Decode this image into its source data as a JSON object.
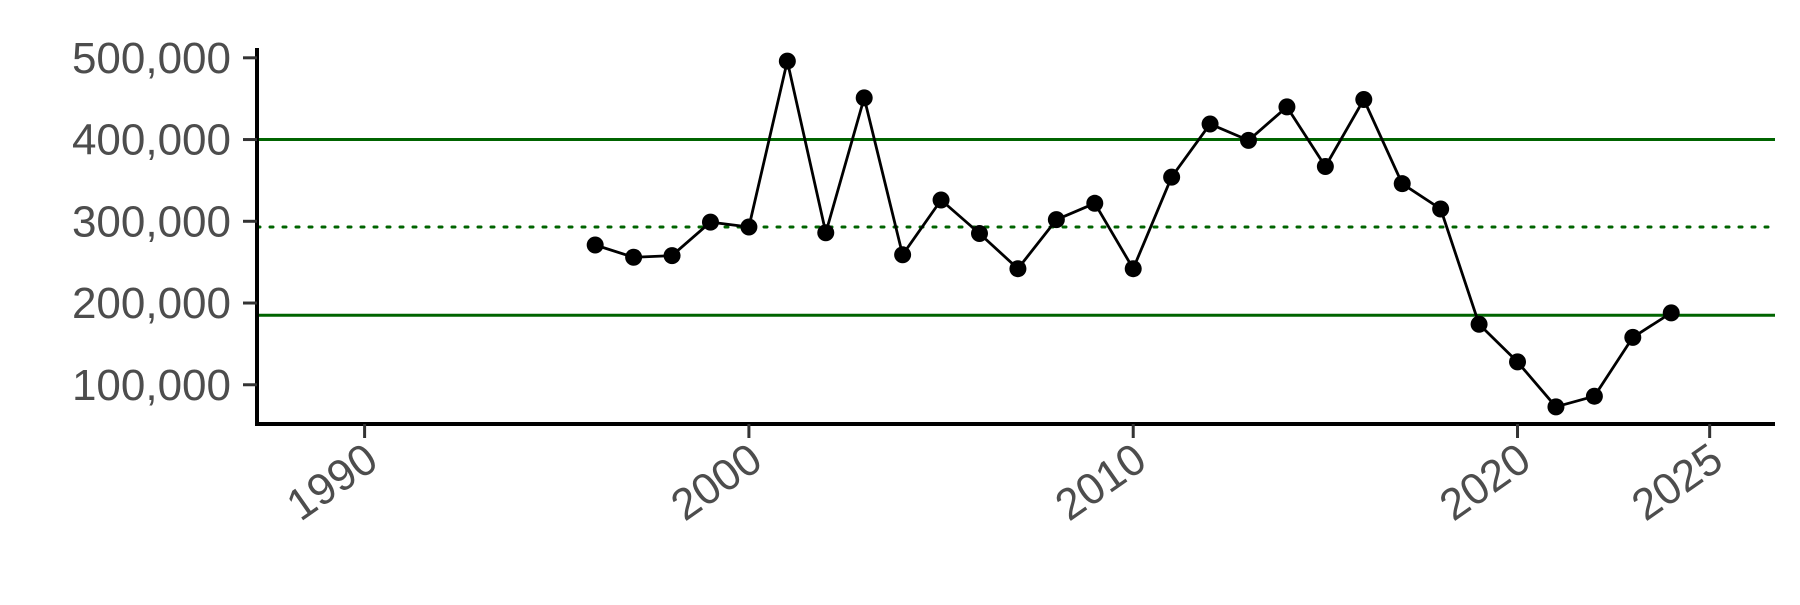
{
  "chart_data": {
    "type": "line",
    "title": "",
    "xlabel": "",
    "ylabel": "",
    "x_ticks": [
      1990,
      2000,
      2010,
      2020,
      2025
    ],
    "x_tick_labels": [
      "1990",
      "2000",
      "2010",
      "2020",
      "2025"
    ],
    "y_ticks": [
      100000,
      200000,
      300000,
      400000,
      500000
    ],
    "y_tick_labels": [
      "100,000",
      "200,000",
      "300,000",
      "400,000",
      "500,000"
    ],
    "xlim": [
      1987.2,
      2026.7
    ],
    "ylim": [
      52000,
      512000
    ],
    "grid": false,
    "series": [
      {
        "x": [
          1996,
          1997,
          1998,
          1999,
          2000,
          2001,
          2002,
          2003,
          2004,
          2005,
          2006,
          2007,
          2008,
          2009,
          2010,
          2011,
          2012,
          2013,
          2014,
          2015,
          2016,
          2017,
          2018,
          2019,
          2020,
          2021,
          2022,
          2023,
          2024
        ],
        "values": [
          271000,
          256000,
          258000,
          299000,
          293000,
          496000,
          286000,
          451000,
          259000,
          326000,
          285000,
          242000,
          302000,
          322000,
          242000,
          354000,
          419000,
          399000,
          440000,
          367000,
          449000,
          346000,
          315000,
          174000,
          128000,
          73000,
          86000,
          158000,
          188000
        ],
        "color": "#000000"
      }
    ],
    "reference_lines": [
      {
        "y": 400000,
        "style": "solid",
        "color": "#006400"
      },
      {
        "y": 293000,
        "style": "dotted",
        "color": "#006400"
      },
      {
        "y": 185000,
        "style": "solid",
        "color": "#006400"
      }
    ]
  }
}
